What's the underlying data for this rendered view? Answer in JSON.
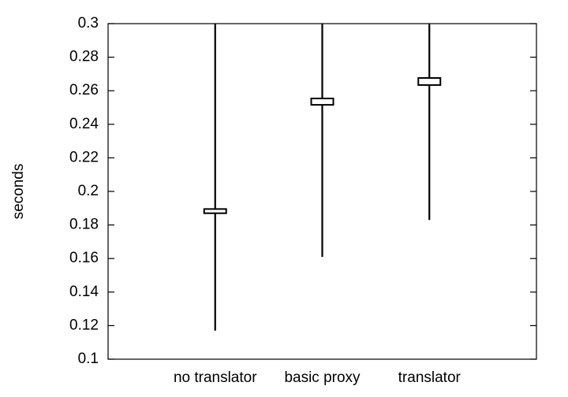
{
  "chart_data": {
    "type": "box",
    "y_label": "seconds",
    "categories": [
      "no translator",
      "basic proxy",
      "translator"
    ],
    "low": [
      0.117,
      0.161,
      0.183
    ],
    "q1": [
      0.187,
      0.2516,
      0.2634
    ],
    "q3": [
      0.1895,
      0.2554,
      0.2676
    ],
    "high": [
      0.3,
      0.3,
      0.3
    ],
    "color": "#000000",
    "ylim": [
      0.1,
      0.3
    ],
    "yticks": [
      0.1,
      0.12,
      0.14,
      0.16,
      0.18,
      0.2,
      0.22,
      0.24,
      0.26,
      0.28,
      0.3
    ]
  }
}
